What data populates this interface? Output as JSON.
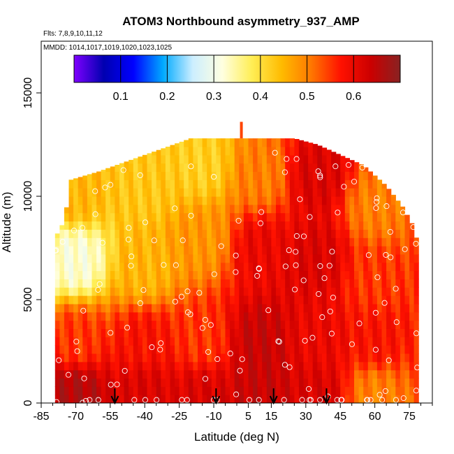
{
  "chart_data": {
    "type": "heatmap",
    "title": "ATOM3 Northbound asymmetry_937_AMP",
    "subtitle_flights": "Flts: 7,8,9,10,11,12",
    "subtitle_dates": "MMDD: 1014,1017,1019,1020,1023,1025",
    "xlabel": "Latitude (deg N)",
    "ylabel": "Altitude (m)",
    "xlim": [
      -85,
      85
    ],
    "ylim": [
      0,
      17500
    ],
    "x_ticks": [
      "-85",
      "-70",
      "-55",
      "-40",
      "-25",
      "-10",
      "5",
      "15",
      "30",
      "45",
      "60",
      "75"
    ],
    "x_tick_values": [
      -85,
      -70,
      -55,
      -40,
      -25,
      -10,
      5,
      15,
      30,
      45,
      60,
      75
    ],
    "y_ticks": [
      "0",
      "5000",
      "10000",
      "15000"
    ],
    "y_tick_values": [
      0,
      5000,
      10000,
      15000
    ],
    "colorbar": {
      "min": 0.0,
      "max": 0.7,
      "tick_labels": [
        "0.1",
        "0.2",
        "0.3",
        "0.4",
        "0.5",
        "0.6"
      ],
      "tick_values": [
        0.1,
        0.2,
        0.3,
        0.4,
        0.5,
        0.6
      ],
      "colors": [
        "#7f00ff",
        "#0000b0",
        "#0000ff",
        "#00aaff",
        "#cceeff",
        "#ffffe0",
        "#ffee55",
        "#ffbb00",
        "#ff7700",
        "#ff1100",
        "#cc0000",
        "#882222"
      ]
    },
    "profile_arrows_lat": [
      -53,
      -9,
      16,
      39
    ],
    "top_marker": {
      "lat": 2,
      "alt_range": [
        12800,
        13600
      ]
    },
    "field_summary": {
      "lat_range": [
        -79,
        79
      ],
      "alt_top_by_lat": [
        [
          -79,
          8000
        ],
        [
          -75,
          8800
        ],
        [
          -72,
          10800
        ],
        [
          -60,
          11200
        ],
        [
          -45,
          11800
        ],
        [
          -30,
          12400
        ],
        [
          -20,
          12800
        ],
        [
          0,
          12800
        ],
        [
          10,
          12800
        ],
        [
          25,
          12800
        ],
        [
          35,
          12500
        ],
        [
          45,
          12000
        ],
        [
          55,
          11500
        ],
        [
          65,
          10500
        ],
        [
          72,
          9500
        ],
        [
          77,
          8500
        ],
        [
          79,
          7500
        ]
      ],
      "typical_values": [
        {
          "lat": -70,
          "alt": 500,
          "value": 0.66
        },
        {
          "lat": -70,
          "alt": 3000,
          "value": 0.55
        },
        {
          "lat": -70,
          "alt": 7000,
          "value": 0.32
        },
        {
          "lat": -70,
          "alt": 10000,
          "value": 0.45
        },
        {
          "lat": -40,
          "alt": 500,
          "value": 0.62
        },
        {
          "lat": -40,
          "alt": 3000,
          "value": 0.58
        },
        {
          "lat": -40,
          "alt": 6500,
          "value": 0.45
        },
        {
          "lat": -40,
          "alt": 10500,
          "value": 0.43
        },
        {
          "lat": -15,
          "alt": 500,
          "value": 0.62
        },
        {
          "lat": -15,
          "alt": 3000,
          "value": 0.55
        },
        {
          "lat": -15,
          "alt": 8000,
          "value": 0.48
        },
        {
          "lat": -15,
          "alt": 11500,
          "value": 0.42
        },
        {
          "lat": 10,
          "alt": 500,
          "value": 0.64
        },
        {
          "lat": 10,
          "alt": 3000,
          "value": 0.64
        },
        {
          "lat": 10,
          "alt": 7500,
          "value": 0.6
        },
        {
          "lat": 10,
          "alt": 11000,
          "value": 0.5
        },
        {
          "lat": 35,
          "alt": 500,
          "value": 0.62
        },
        {
          "lat": 35,
          "alt": 3000,
          "value": 0.6
        },
        {
          "lat": 35,
          "alt": 7000,
          "value": 0.62
        },
        {
          "lat": 35,
          "alt": 11000,
          "value": 0.62
        },
        {
          "lat": 60,
          "alt": 500,
          "value": 0.5
        },
        {
          "lat": 60,
          "alt": 3000,
          "value": 0.58
        },
        {
          "lat": 60,
          "alt": 6000,
          "value": 0.55
        },
        {
          "lat": 60,
          "alt": 9500,
          "value": 0.5
        }
      ]
    }
  }
}
